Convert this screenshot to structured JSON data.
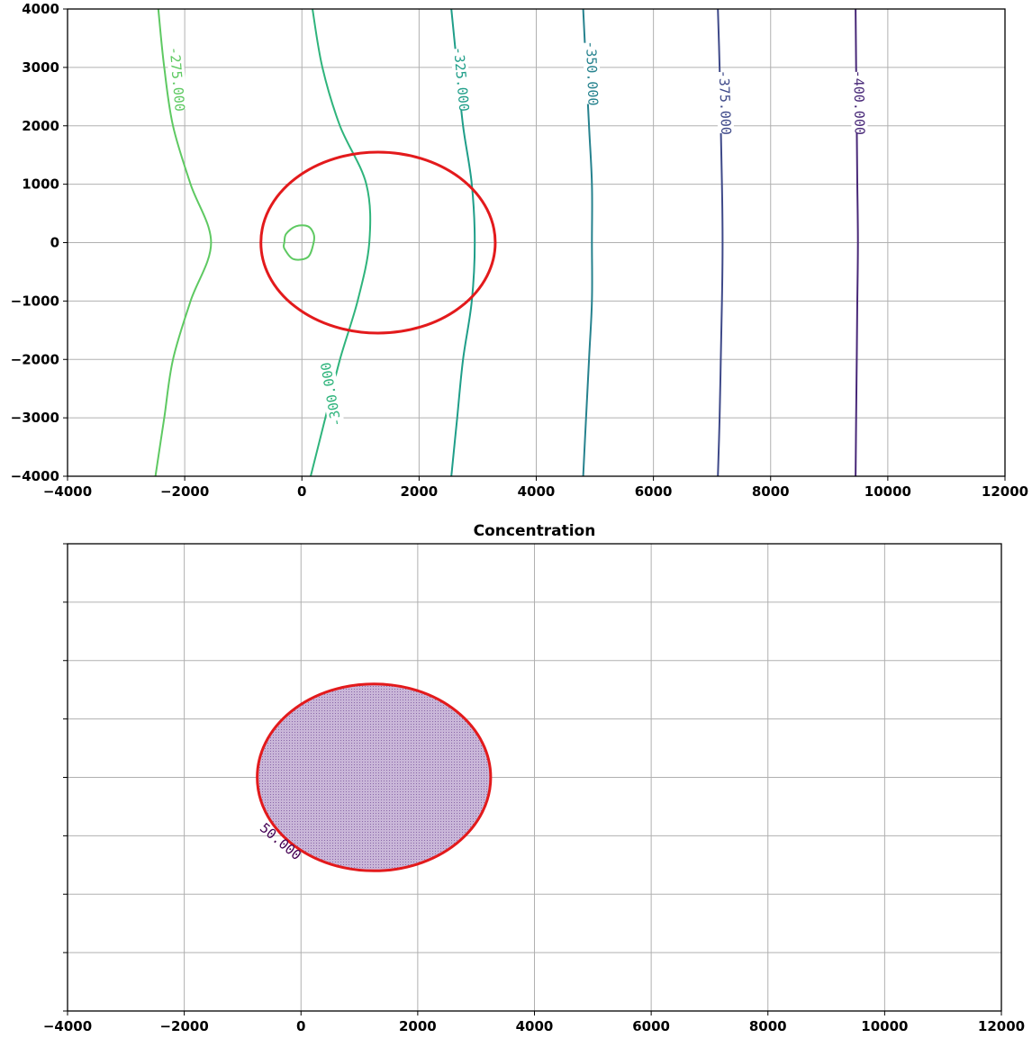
{
  "chart_data": [
    {
      "type": "contour",
      "title": "",
      "xlabel": "",
      "ylabel": "",
      "xlim": [
        -4000,
        12000
      ],
      "ylim": [
        -4000,
        4000
      ],
      "x_ticks": [
        -4000,
        -2000,
        0,
        2000,
        4000,
        6000,
        8000,
        10000,
        12000
      ],
      "y_ticks": [
        -4000,
        -3000,
        -2000,
        -1000,
        0,
        1000,
        2000,
        3000,
        4000
      ],
      "grid": true,
      "contours": [
        {
          "level": -275,
          "label": "-275.000",
          "color": "#5ec962",
          "paths": [
            [
              [
                -2450,
                4000
              ],
              [
                -2350,
                3000
              ],
              [
                -2200,
                2000
              ],
              [
                -1900,
                1000
              ],
              [
                -1550,
                0
              ],
              [
                -1900,
                -1000
              ],
              [
                -2200,
                -2000
              ],
              [
                -2350,
                -3000
              ],
              [
                -2500,
                -4000
              ]
            ],
            [
              [
                -300,
                0
              ],
              [
                -270,
                150
              ],
              [
                -100,
                280
              ],
              [
                100,
                280
              ],
              [
                200,
                150
              ],
              [
                200,
                0
              ],
              [
                100,
                -250
              ],
              [
                -150,
                -280
              ],
              [
                -300,
                -100
              ],
              [
                -300,
                0
              ]
            ]
          ],
          "label_at": [
            -2130,
            2800
          ],
          "label_angle": 85
        },
        {
          "level": -300,
          "label": "-300.000",
          "color": "#2fb47c",
          "paths": [
            [
              [
                180,
                4000
              ],
              [
                350,
                3000
              ],
              [
                650,
                2000
              ],
              [
                1100,
                1000
              ],
              [
                1150,
                0
              ],
              [
                950,
                -1000
              ],
              [
                650,
                -2000
              ],
              [
                400,
                -3000
              ],
              [
                150,
                -4000
              ]
            ]
          ],
          "label_at": [
            500,
            -2600
          ],
          "label_angle": -100
        },
        {
          "level": -325,
          "label": "-325.000",
          "color": "#1f9e89",
          "paths": [
            [
              [
                2550,
                4000
              ],
              [
                2650,
                3000
              ],
              [
                2750,
                2000
              ],
              [
                2900,
                1000
              ],
              [
                2950,
                0
              ],
              [
                2900,
                -1000
              ],
              [
                2750,
                -2000
              ],
              [
                2650,
                -3000
              ],
              [
                2550,
                -4000
              ]
            ]
          ],
          "label_at": [
            2720,
            2800
          ],
          "label_angle": 85
        },
        {
          "level": -350,
          "label": "-350.000",
          "color": "#26828e",
          "paths": [
            [
              [
                4800,
                4000
              ],
              [
                4850,
                3000
              ],
              [
                4900,
                2000
              ],
              [
                4950,
                1000
              ],
              [
                4950,
                0
              ],
              [
                4950,
                -1000
              ],
              [
                4900,
                -2000
              ],
              [
                4850,
                -3000
              ],
              [
                4800,
                -4000
              ]
            ]
          ],
          "label_at": [
            4950,
            2900
          ],
          "label_angle": 88
        },
        {
          "level": -375,
          "label": "-375.000",
          "color": "#3e4989",
          "paths": [
            [
              [
                7100,
                4000
              ],
              [
                7130,
                3000
              ],
              [
                7150,
                2000
              ],
              [
                7170,
                1000
              ],
              [
                7180,
                0
              ],
              [
                7170,
                -1000
              ],
              [
                7150,
                -2000
              ],
              [
                7130,
                -3000
              ],
              [
                7100,
                -4000
              ]
            ]
          ],
          "label_at": [
            7220,
            2400
          ],
          "label_angle": 88
        },
        {
          "level": -400,
          "label": "-400.000",
          "color": "#482878",
          "paths": [
            [
              [
                9450,
                4000
              ],
              [
                9460,
                3000
              ],
              [
                9470,
                2000
              ],
              [
                9480,
                1000
              ],
              [
                9490,
                0
              ],
              [
                9480,
                -1000
              ],
              [
                9470,
                -2000
              ],
              [
                9460,
                -3000
              ],
              [
                9450,
                -4000
              ]
            ]
          ],
          "label_at": [
            9510,
            2400
          ],
          "label_angle": 89
        }
      ],
      "ellipse": {
        "color": "#e31a1c",
        "center": [
          1300,
          0
        ],
        "radii": [
          2000,
          1550
        ]
      }
    },
    {
      "type": "contour",
      "title": "Concentration",
      "xlabel": "",
      "ylabel": "",
      "xlim": [
        -4000,
        12000
      ],
      "ylim": [
        -4000,
        4000
      ],
      "x_ticks": [
        -4000,
        -2000,
        0,
        2000,
        4000,
        6000,
        8000,
        10000,
        12000
      ],
      "y_ticks": [
        -4000,
        -3000,
        -2000,
        -1000,
        0,
        1000,
        2000,
        3000,
        4000
      ],
      "y_ticklabels_visible": false,
      "grid": true,
      "contours": [
        {
          "level": 50,
          "label": "50.000",
          "color": "#440154",
          "fill": "#b7a0c8",
          "label_at": [
            -350,
            -1100
          ],
          "label_angle": 40
        }
      ],
      "ellipse": {
        "color": "#e31a1c",
        "center": [
          1250,
          0
        ],
        "radii": [
          2000,
          1600
        ]
      }
    }
  ]
}
